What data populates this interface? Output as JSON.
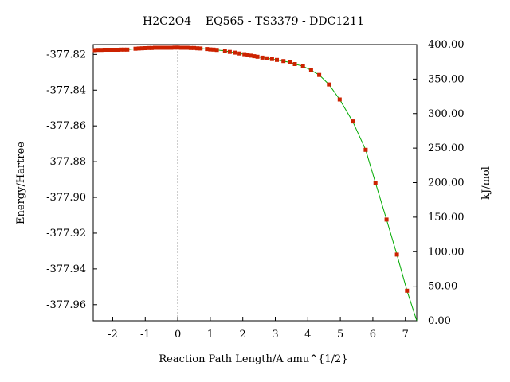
{
  "chart_data": {
    "type": "line",
    "title": "H2C2O4    EQ565 - TS3379 - DDC1211",
    "xlabel": "Reaction Path Length/A amu^{1/2}",
    "ylabel": "Energy/Hartree",
    "ylabel_right": "kJ/mol",
    "xlim": [
      -2.6,
      7.35
    ],
    "ylim": [
      -377.969,
      -377.8145
    ],
    "ylim_right": [
      0,
      400
    ],
    "x_ticks": [
      -2,
      -1,
      0,
      1,
      2,
      3,
      4,
      5,
      6,
      7
    ],
    "x_tick_labels": [
      "-2",
      "-1",
      "0",
      "1",
      "2",
      "3",
      "4",
      "5",
      "6",
      "7"
    ],
    "y_ticks": [
      -377.82,
      -377.84,
      -377.86,
      -377.88,
      -377.9,
      -377.92,
      -377.94,
      -377.96
    ],
    "y_tick_labels": [
      "-377.82",
      "-377.84",
      "-377.86",
      "-377.88",
      "-377.90",
      "-377.92",
      "-377.94",
      "-377.96"
    ],
    "y_right_ticks": [
      0,
      50,
      100,
      150,
      200,
      250,
      300,
      350,
      400
    ],
    "y_right_tick_labels": [
      "0.00",
      "50.00",
      "100.00",
      "150.00",
      "200.00",
      "250.00",
      "300.00",
      "350.00",
      "400.00"
    ],
    "ts_line_x": 0,
    "curve_color": "#00aa00",
    "marker_color": "#cc2200",
    "series": [
      {
        "x": [
          -2.55,
          -2.45,
          -2.35,
          -2.25,
          -2.15,
          -2.05,
          -1.95,
          -1.85,
          -1.75,
          -1.65,
          -1.55,
          -1.3,
          -1.2,
          -1.1,
          -1.0,
          -0.9,
          -0.8,
          -0.7,
          -0.6,
          -0.5,
          -0.4,
          -0.3,
          -0.2,
          -0.1,
          0.0,
          0.1,
          0.2,
          0.3,
          0.4,
          0.5,
          0.6,
          0.7,
          0.9,
          1.0,
          1.1,
          1.2,
          1.45,
          1.6,
          1.75,
          1.9,
          2.05,
          2.15,
          2.25,
          2.35,
          2.45,
          2.6,
          2.75,
          2.9,
          3.05,
          3.25,
          3.45,
          3.6,
          3.85,
          4.1,
          4.35,
          4.65,
          4.98,
          5.38,
          5.78,
          6.08,
          6.42,
          6.74,
          7.05
        ],
        "y": [
          -377.8176,
          -377.8175,
          -377.8175,
          -377.8174,
          -377.8174,
          -377.8174,
          -377.8174,
          -377.8174,
          -377.8173,
          -377.8173,
          -377.8173,
          -377.8168,
          -377.8167,
          -377.8166,
          -377.8165,
          -377.8164,
          -377.8164,
          -377.8163,
          -377.8163,
          -377.8163,
          -377.8163,
          -377.8163,
          -377.8163,
          -377.8162,
          -377.8162,
          -377.8163,
          -377.8163,
          -377.8163,
          -377.8164,
          -377.8164,
          -377.8166,
          -377.8167,
          -377.817,
          -377.8172,
          -377.8173,
          -377.8175,
          -377.818,
          -377.8186,
          -377.819,
          -377.8195,
          -377.8199,
          -377.8203,
          -377.8207,
          -377.821,
          -377.8213,
          -377.8218,
          -377.8222,
          -377.8226,
          -377.8231,
          -377.8237,
          -377.8245,
          -377.8254,
          -377.8266,
          -377.8289,
          -377.8315,
          -377.8368,
          -377.8452,
          -377.8575,
          -377.8734,
          -377.8918,
          -377.9124,
          -377.932,
          -377.9522
        ]
      }
    ]
  }
}
